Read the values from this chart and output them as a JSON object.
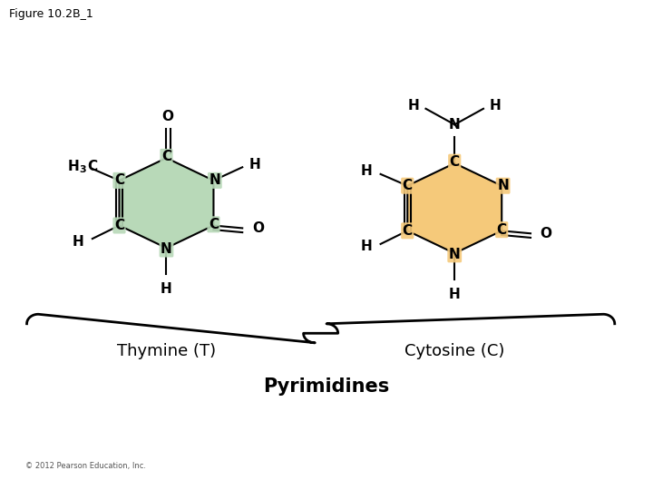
{
  "title": "Figure 10.2B_1",
  "background_color": "#ffffff",
  "thymine_ring_color": "#b8d9b8",
  "cytosine_ring_color": "#f5c97a",
  "label_thymine": "Thymine (T)",
  "label_cytosine": "Cytosine (C)",
  "label_pyrimidines": "Pyrimidines",
  "copyright": "© 2012 Pearson Education, Inc.",
  "figsize": [
    7.2,
    5.4
  ],
  "dpi": 100
}
